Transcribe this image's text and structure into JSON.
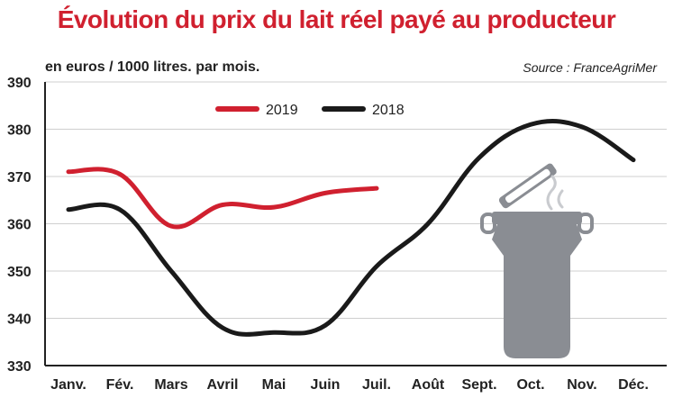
{
  "chart_data": {
    "type": "line",
    "title": "Évolution du prix du lait réel payé au producteur",
    "subtitle": "en euros / 1000 litres.  par mois.",
    "source": "Source : FranceAgriMer",
    "categories": [
      "Janv.",
      "Fév.",
      "Mars",
      "Avril",
      "Mai",
      "Juin",
      "Juil.",
      "Août",
      "Sept.",
      "Oct.",
      "Nov.",
      "Déc."
    ],
    "yticks": [
      330,
      340,
      350,
      360,
      370,
      380,
      390
    ],
    "ylim": [
      330,
      390
    ],
    "grid": true,
    "legend_position": "top-center",
    "series": [
      {
        "name": "2019",
        "color": "#d0202f",
        "values": [
          371,
          370.5,
          359.5,
          364,
          363.5,
          366.5,
          367.5,
          null,
          null,
          null,
          null,
          null
        ]
      },
      {
        "name": "2018",
        "color": "#1a1a1a",
        "values": [
          363,
          363,
          350,
          338,
          337,
          338.5,
          351,
          360,
          374,
          381,
          380.5,
          373.5
        ]
      }
    ]
  },
  "illustration": {
    "icon": "milk-can-icon",
    "color": "#8a8d93"
  }
}
